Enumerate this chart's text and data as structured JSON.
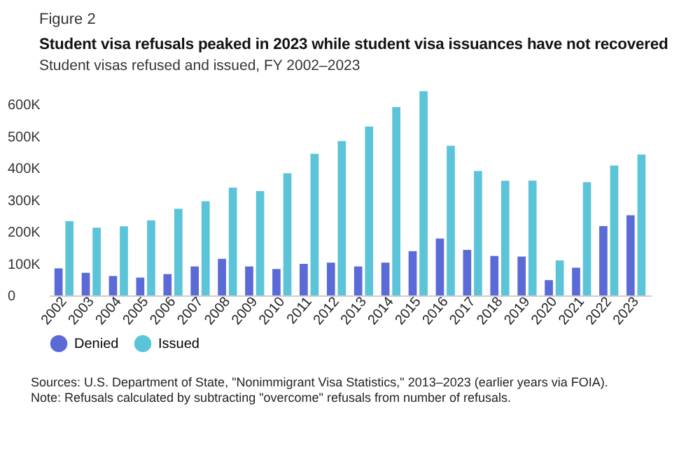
{
  "chart_data": {
    "type": "bar",
    "title": "Student visa refusals peaked in 2023 while student visa issuances have not recovered",
    "subtitle": "Student visas refused and issued, FY 2002–2023",
    "annotations": [
      "Figure 2",
      "Sources: U.S. Department of State, \"Nonimmigrant Visa Statistics,\" 2013–2023 (earlier years via FOIA).",
      "Note: Refusals calculated by subtracting \"overcome\" refusals from number of refusals."
    ],
    "categories": [
      "2002",
      "2003",
      "2004",
      "2005",
      "2006",
      "2007",
      "2008",
      "2009",
      "2010",
      "2011",
      "2012",
      "2013",
      "2014",
      "2015",
      "2016",
      "2017",
      "2018",
      "2019",
      "2020",
      "2021",
      "2022",
      "2023"
    ],
    "series": [
      {
        "name": "Denied",
        "color": "#5b6ad6",
        "values": [
          85000,
          71000,
          61000,
          56000,
          67000,
          91000,
          115000,
          91000,
          83000,
          99000,
          103000,
          91000,
          103000,
          139000,
          179000,
          143000,
          124000,
          122000,
          48000,
          87000,
          218000,
          252000
        ]
      },
      {
        "name": "Issued",
        "color": "#5cc4d8",
        "values": [
          233000,
          213000,
          217000,
          236000,
          272000,
          296000,
          339000,
          328000,
          384000,
          445000,
          485000,
          531000,
          592000,
          642000,
          470000,
          391000,
          360000,
          361000,
          110000,
          356000,
          408000,
          443000
        ]
      }
    ],
    "ylim": [
      0,
      660000
    ],
    "yticks": [
      {
        "value": 0,
        "label": "0"
      },
      {
        "value": 100000,
        "label": "100K"
      },
      {
        "value": 200000,
        "label": "200K"
      },
      {
        "value": 300000,
        "label": "300K"
      },
      {
        "value": 400000,
        "label": "400K"
      },
      {
        "value": 500000,
        "label": "500K"
      },
      {
        "value": 600000,
        "label": "600K"
      }
    ],
    "grid": false,
    "legend": "bottom"
  }
}
